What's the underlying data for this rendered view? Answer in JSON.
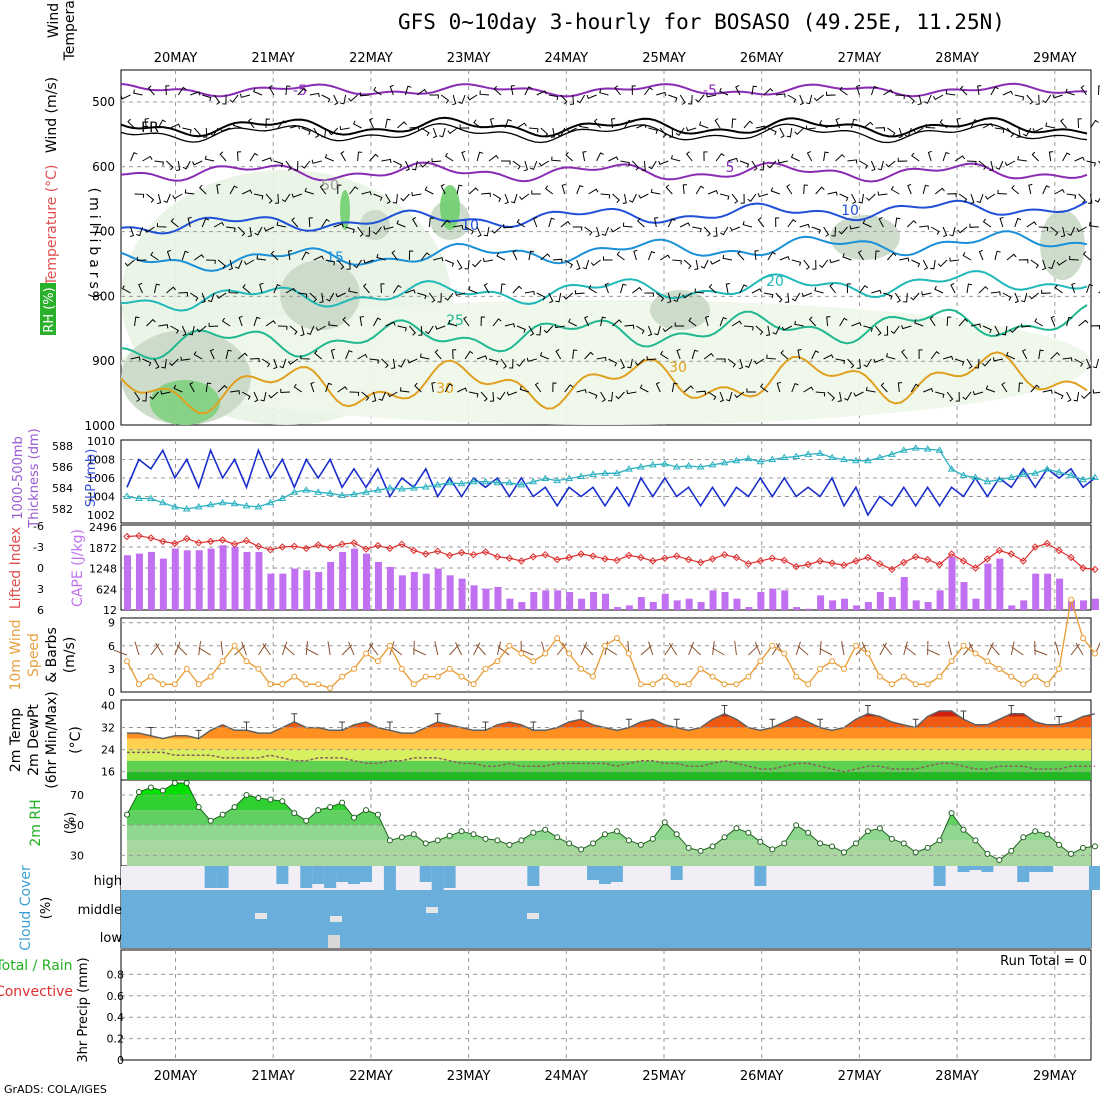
{
  "title": "GFS 0~10day 3-hourly for BOSASO (49.25E, 11.25N)",
  "credit": "GrADS: COLA/IGES",
  "dates": [
    "20MAY",
    "21MAY",
    "22MAY",
    "23MAY",
    "24MAY",
    "25MAY",
    "26MAY",
    "27MAY",
    "28MAY",
    "29MAY"
  ],
  "panels": {
    "profile": {
      "ylabel": "(millibars)",
      "left_labels": [
        "Wind (m/s)",
        "Temperature (°C)",
        "RH (%)"
      ],
      "y_ticks": [
        "500",
        "600",
        "700",
        "800",
        "900",
        "1000"
      ],
      "contour_labels": [
        "-5",
        "FR",
        "-5",
        "5",
        "10",
        "15",
        "20",
        "25",
        "30",
        "30",
        "50",
        "10"
      ]
    },
    "thickness_slp": {
      "left_labels": [
        "1000-500mb",
        "Thickness (dm)",
        "SLP (mb)"
      ],
      "thickness_ticks": [
        "582",
        "584",
        "586",
        "588"
      ],
      "slp_ticks": [
        "1002",
        "1004",
        "1006",
        "1008",
        "1010"
      ]
    },
    "cape_li": {
      "left_labels": [
        "Lifted Index",
        "CAPE (J/kg)"
      ],
      "li_ticks": [
        "-6",
        "-3",
        "0",
        "3",
        "6"
      ],
      "cape_ticks": [
        "2496",
        "1872",
        "1248",
        "624",
        "12"
      ]
    },
    "wind10m": {
      "left_labels": [
        "10m Wind",
        "Speed",
        "& Barbs",
        "(m/s)"
      ],
      "ticks": [
        "9",
        "6",
        "3",
        "0"
      ]
    },
    "temp2m": {
      "left_labels": [
        "2m Temp",
        "2m DewPt",
        "(6hr Min/Max)",
        "(°C)"
      ],
      "ticks": [
        "40",
        "32",
        "24",
        "16"
      ]
    },
    "rh2m": {
      "left_labels": [
        "2m RH",
        "(%)"
      ],
      "ticks": [
        "70",
        "50",
        "30"
      ]
    },
    "cloud": {
      "left_labels": [
        "Cloud Cover",
        "(%)"
      ],
      "levels": [
        "high",
        "middle",
        "low"
      ]
    },
    "precip": {
      "left_labels": [
        "Total / Rain",
        "Convective",
        "3hr Precip (mm)"
      ],
      "ticks": [
        "0.8",
        "0.6",
        "0.4",
        "0.2",
        "0"
      ],
      "run_total": "Run Total = 0"
    }
  },
  "colors": {
    "slp": "#1a2ecc",
    "thickness": "#2ab0c0",
    "lifted_index": "#dd3030",
    "cape": "#c070f0",
    "wind_speed": "#e89a30",
    "rh_green": "#22c022",
    "cloud": "#6aaedc",
    "cloud_bg": "#f2eef6"
  },
  "chart_data": [
    {
      "type": "line",
      "title": "1000-500mb Thickness (dm) / SLP (mb)",
      "series": [
        {
          "name": "SLP (mb)",
          "values": [
            1005,
            1008,
            1007,
            1009,
            1006,
            1008,
            1005,
            1009,
            1006,
            1008,
            1005,
            1009,
            1006,
            1008,
            1005,
            1008,
            1006,
            1008,
            1005,
            1007,
            1005,
            1007,
            1004,
            1006,
            1005,
            1007,
            1004,
            1006,
            1004,
            1006,
            1005,
            1006,
            1004,
            1006,
            1004,
            1005,
            1003,
            1005,
            1004,
            1005,
            1003,
            1005,
            1003,
            1006,
            1004,
            1006,
            1004,
            1005,
            1003,
            1005,
            1003,
            1005,
            1004,
            1006,
            1004,
            1006,
            1004,
            1005,
            1004,
            1006,
            1003,
            1005,
            1002,
            1004,
            1003,
            1005,
            1003,
            1005,
            1003,
            1005,
            1004,
            1006,
            1004,
            1006,
            1005,
            1007,
            1005,
            1007,
            1006,
            1007,
            1005,
            1006
          ]
        },
        {
          "name": "Thickness (dm)",
          "values": [
            583.2,
            583.0,
            583.0,
            582.6,
            582.2,
            582.0,
            582.2,
            582.4,
            582.6,
            582.5,
            582.3,
            582.2,
            582.6,
            583.0,
            583.6,
            583.8,
            583.6,
            583.5,
            583.3,
            583.4,
            583.6,
            583.8,
            584.0,
            583.9,
            584.0,
            584.1,
            584.3,
            584.5,
            584.4,
            584.6,
            584.6,
            584.5,
            584.5,
            584.3,
            584.6,
            584.9,
            584.7,
            584.9,
            585.1,
            585.3,
            585.4,
            585.4,
            585.8,
            586.0,
            586.2,
            586.3,
            586.0,
            586.1,
            586.0,
            586.2,
            586.4,
            586.6,
            586.8,
            586.5,
            586.7,
            586.9,
            587.0,
            587.2,
            587.3,
            586.9,
            586.7,
            586.6,
            586.6,
            586.9,
            587.2,
            587.6,
            587.8,
            587.7,
            587.6,
            585.8,
            585.2,
            585.0,
            584.6,
            584.8,
            585.0,
            585.3,
            585.4,
            585.8,
            585.5,
            585.2,
            584.8,
            585.0
          ]
        }
      ],
      "ylim_slp": [
        1002,
        1010
      ],
      "ylim_thickness": [
        581,
        588
      ]
    },
    {
      "type": "bar",
      "title": "Lifted Index / CAPE (J/kg)",
      "series": [
        {
          "name": "CAPE (J/kg)",
          "values": [
            1650,
            1700,
            1750,
            1550,
            1850,
            1800,
            1800,
            1850,
            1950,
            1900,
            1750,
            1750,
            1100,
            1100,
            1250,
            1200,
            1150,
            1450,
            1750,
            1850,
            1700,
            1450,
            1300,
            1050,
            1150,
            1100,
            1250,
            1050,
            950,
            750,
            650,
            700,
            350,
            250,
            550,
            600,
            600,
            550,
            350,
            550,
            500,
            100,
            150,
            400,
            250,
            500,
            300,
            350,
            250,
            600,
            550,
            350,
            100,
            550,
            650,
            600,
            100,
            50,
            450,
            300,
            350,
            150,
            250,
            550,
            400,
            1000,
            300,
            250,
            600,
            1600,
            850,
            350,
            1400,
            1550,
            150,
            300,
            1100,
            1100,
            950,
            300,
            300,
            350
          ]
        },
        {
          "name": "Lifted Index",
          "values": [
            -4.5,
            -4.6,
            -4.3,
            -3.8,
            -3.5,
            -4.2,
            -3.6,
            -3.8,
            -4.0,
            -3.4,
            -3.9,
            -3.1,
            -2.6,
            -3.0,
            -3.1,
            -2.8,
            -3.3,
            -2.9,
            -3.4,
            -3.6,
            -2.7,
            -3.2,
            -2.8,
            -3.4,
            -2.5,
            -2.0,
            -2.4,
            -1.8,
            -2.2,
            -1.9,
            -2.3,
            -1.6,
            -1.4,
            -1.0,
            -1.6,
            -1.9,
            -1.2,
            -1.5,
            -2.0,
            -1.7,
            -1.3,
            -1.1,
            -1.8,
            -1.5,
            -1.0,
            -1.4,
            -1.7,
            -1.2,
            -0.8,
            -1.3,
            -1.9,
            -1.5,
            -0.6,
            -1.0,
            -1.4,
            -1.1,
            -0.2,
            -0.5,
            -1.0,
            -0.7,
            -0.4,
            -1.0,
            -1.5,
            -0.6,
            0.2,
            -0.8,
            -1.6,
            -1.2,
            -0.5,
            -2.0,
            -1.0,
            0.0,
            -1.3,
            -2.5,
            -2.0,
            -1.0,
            -3.0,
            -3.5,
            -2.5,
            -1.5,
            0.0,
            0.2
          ]
        }
      ],
      "ylim_cape": [
        12,
        2496
      ],
      "ylim_li": [
        6,
        -6
      ]
    },
    {
      "type": "line",
      "title": "10m Wind Speed & Barbs (m/s)",
      "series": [
        {
          "name": "Wind Speed (m/s)",
          "values": [
            4,
            1,
            2,
            1,
            1,
            3,
            1,
            2,
            4,
            6,
            4,
            3,
            1,
            1,
            2,
            1,
            1,
            0.5,
            2,
            3,
            5,
            4,
            6,
            3,
            1,
            2,
            2,
            3,
            2,
            1,
            3,
            4,
            6,
            5,
            4,
            5,
            7,
            5,
            3,
            2,
            6,
            7,
            5,
            1,
            1,
            2,
            1,
            1,
            3,
            2,
            1,
            1,
            2,
            4,
            6,
            5,
            2,
            1,
            3,
            4,
            3,
            6,
            5,
            2,
            1,
            2,
            1,
            1,
            2,
            4,
            6,
            5,
            4,
            3,
            2,
            1,
            2,
            1,
            3,
            12,
            7,
            5
          ]
        }
      ],
      "ylim": [
        0,
        11
      ]
    },
    {
      "type": "area",
      "title": "2m Temp / 2m DewPt (6hr Min/Max) (°C)",
      "series": [
        {
          "name": "2m Temp (°C)",
          "values": [
            30,
            30,
            29,
            28,
            29,
            29,
            28,
            31,
            33,
            31,
            31,
            30,
            30,
            32,
            34,
            32,
            32,
            31,
            31,
            33,
            34,
            32,
            31,
            30,
            30,
            32,
            34,
            33,
            32,
            31,
            31,
            33,
            34,
            33,
            31,
            31,
            32,
            34,
            35,
            33,
            32,
            31,
            32,
            34,
            35,
            33,
            32,
            31,
            32,
            35,
            37,
            35,
            32,
            31,
            32,
            34,
            36,
            34,
            32,
            31,
            32,
            35,
            37,
            36,
            34,
            33,
            32,
            36,
            38,
            38,
            35,
            33,
            33,
            35,
            37,
            37,
            34,
            33,
            33,
            34,
            36,
            37
          ]
        },
        {
          "name": "2m DewPt (°C)",
          "values": [
            23,
            23,
            23,
            23,
            22,
            22,
            22,
            22,
            21,
            21,
            21,
            21,
            22,
            21,
            20,
            20,
            21,
            21,
            21,
            20,
            19,
            19,
            20,
            20,
            21,
            21,
            21,
            20,
            19,
            19,
            18,
            18,
            19,
            18,
            18,
            18,
            19,
            19,
            19,
            19,
            19,
            18,
            19,
            20,
            20,
            19,
            19,
            18,
            18,
            19,
            20,
            19,
            18,
            17,
            17,
            18,
            19,
            19,
            18,
            17,
            16,
            17,
            18,
            18,
            17,
            17,
            17,
            18,
            19,
            19,
            18,
            17,
            17,
            18,
            18,
            18,
            17,
            17,
            17,
            18,
            18,
            18
          ]
        }
      ],
      "ylim": [
        13,
        42
      ]
    },
    {
      "type": "area",
      "title": "2m RH (%)",
      "series": [
        {
          "name": "2m RH (%)",
          "values": [
            57,
            72,
            75,
            73,
            78,
            78,
            62,
            53,
            57,
            62,
            70,
            68,
            67,
            66,
            58,
            53,
            60,
            62,
            65,
            55,
            60,
            57,
            40,
            42,
            44,
            38,
            40,
            43,
            46,
            44,
            41,
            40,
            37,
            40,
            45,
            47,
            42,
            38,
            34,
            38,
            44,
            46,
            40,
            37,
            41,
            52,
            44,
            35,
            33,
            36,
            42,
            48,
            45,
            39,
            34,
            38,
            50,
            45,
            38,
            36,
            32,
            38,
            46,
            48,
            41,
            38,
            32,
            35,
            40,
            58,
            47,
            40,
            31,
            27,
            33,
            42,
            46,
            44,
            37,
            31,
            35,
            36
          ]
        }
      ],
      "ylim": [
        23,
        80
      ]
    },
    {
      "type": "bar",
      "title": "3hr Precip (mm)",
      "series": [
        {
          "name": "Total / Rain",
          "values": [
            0,
            0,
            0,
            0,
            0,
            0,
            0,
            0,
            0,
            0,
            0,
            0,
            0,
            0,
            0,
            0,
            0,
            0,
            0,
            0,
            0,
            0,
            0,
            0,
            0,
            0,
            0,
            0,
            0,
            0,
            0,
            0,
            0,
            0,
            0,
            0,
            0,
            0,
            0,
            0,
            0,
            0,
            0,
            0,
            0,
            0,
            0,
            0,
            0,
            0,
            0,
            0,
            0,
            0,
            0,
            0,
            0,
            0,
            0,
            0,
            0,
            0,
            0,
            0,
            0,
            0,
            0,
            0,
            0,
            0,
            0,
            0,
            0,
            0,
            0,
            0,
            0,
            0,
            0,
            0,
            0,
            0
          ]
        },
        {
          "name": "Convective",
          "values": [
            0,
            0,
            0,
            0,
            0,
            0,
            0,
            0,
            0,
            0,
            0,
            0,
            0,
            0,
            0,
            0,
            0,
            0,
            0,
            0,
            0,
            0,
            0,
            0,
            0,
            0,
            0,
            0,
            0,
            0,
            0,
            0,
            0,
            0,
            0,
            0,
            0,
            0,
            0,
            0,
            0,
            0,
            0,
            0,
            0,
            0,
            0,
            0,
            0,
            0,
            0,
            0,
            0,
            0,
            0,
            0,
            0,
            0,
            0,
            0,
            0,
            0,
            0,
            0,
            0,
            0,
            0,
            0,
            0,
            0,
            0,
            0,
            0,
            0,
            0,
            0,
            0,
            0,
            0,
            0,
            0,
            0
          ]
        }
      ],
      "ylim": [
        0,
        1
      ]
    }
  ]
}
